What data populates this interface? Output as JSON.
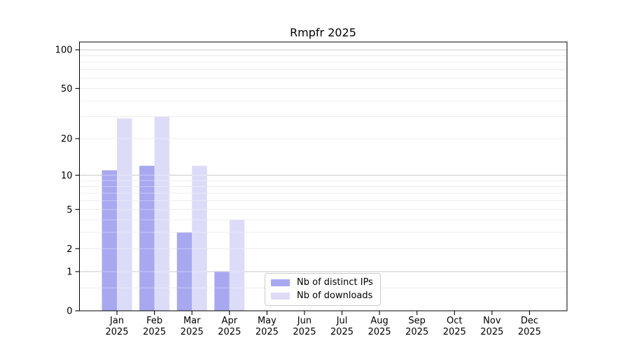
{
  "page": {
    "background": "#ffffff"
  },
  "chart_data": {
    "type": "bar",
    "title": "Rmpfr 2025",
    "categories": [
      "Jan",
      "Feb",
      "Mar",
      "Apr",
      "May",
      "Jun",
      "Jul",
      "Aug",
      "Sep",
      "Oct",
      "Nov",
      "Dec"
    ],
    "x_tick_second_line": "2025",
    "series": [
      {
        "name": "Nb of distinct IPs",
        "color": "#a8a8f0",
        "values": [
          11,
          12,
          3,
          1,
          null,
          null,
          null,
          null,
          null,
          null,
          null,
          null
        ]
      },
      {
        "name": "Nb of downloads",
        "color": "#dcdcf8",
        "values": [
          29,
          30,
          12,
          4,
          null,
          null,
          null,
          null,
          null,
          null,
          null,
          null
        ]
      }
    ],
    "yscale": "log10(1+v)",
    "ylim": [
      0,
      115
    ],
    "yticks": [
      0,
      1,
      2,
      5,
      10,
      20,
      50,
      100
    ],
    "gridlines_major": [
      1,
      10,
      100
    ],
    "gridlines_minor": [
      0.5,
      2,
      3,
      4,
      5,
      6,
      7,
      8,
      9,
      20,
      30,
      40,
      50,
      60,
      70,
      80,
      90
    ],
    "grid": "on",
    "legend_position": "lower center",
    "xlabel": "",
    "ylabel": ""
  },
  "colors": {
    "axis": "#000000",
    "grid_major": "#c8c8c8",
    "grid_minor": "#ececec",
    "text": "#000000"
  }
}
